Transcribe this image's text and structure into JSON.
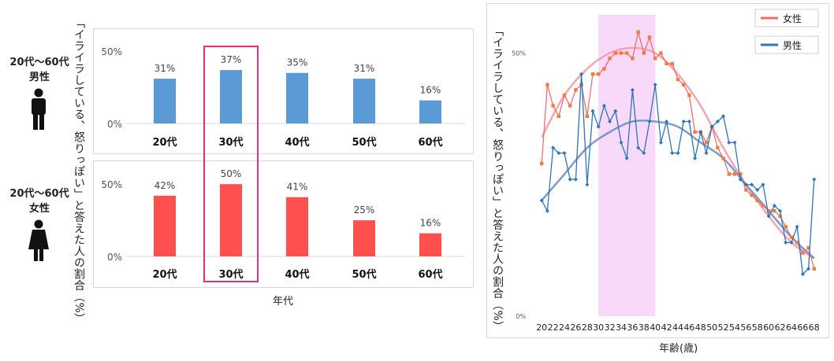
{
  "left": {
    "y_title": "「イライラしている、怒りっぽい」と答えた人の割合（%）",
    "x_title": "年代",
    "groups": [
      {
        "range": "20代〜60代",
        "gender": "男性",
        "icon": "male-person-icon"
      },
      {
        "range": "20代〜60代",
        "gender": "女性",
        "icon": "female-person-icon"
      }
    ]
  },
  "right": {
    "y_title": "「イライラしている、怒りっぽい」と答えた人の割合（%）",
    "x_title": "年齢(歳)"
  },
  "colors": {
    "male_bar": "#5b9bd5",
    "female_bar": "#ff4f4f",
    "highlight_box": "#e0307a",
    "male_line": "#2e75b6",
    "female_line": "#f26d6d",
    "male_trend": "#6f8fc8",
    "female_trend": "#f59aa8",
    "band": "#f9d9f9"
  },
  "chart_data": [
    {
      "type": "bar",
      "categories": [
        "20代",
        "30代",
        "40代",
        "50代",
        "60代"
      ],
      "values": [
        31,
        37,
        35,
        31,
        16
      ],
      "value_labels": [
        "31%",
        "37%",
        "35%",
        "31%",
        "16%"
      ],
      "y_ticks": [
        "0%",
        "50%"
      ],
      "ylim": [
        0,
        55
      ],
      "group": "男性",
      "highlight_category": "30代"
    },
    {
      "type": "bar",
      "categories": [
        "20代",
        "30代",
        "40代",
        "50代",
        "60代"
      ],
      "values": [
        42,
        50,
        41,
        25,
        16
      ],
      "value_labels": [
        "42%",
        "50%",
        "41%",
        "25%",
        "16%"
      ],
      "y_ticks": [
        "0%",
        "50%"
      ],
      "ylim": [
        0,
        55
      ],
      "group": "女性",
      "highlight_category": "30代"
    },
    {
      "type": "line",
      "x_ticks": [
        20,
        22,
        24,
        26,
        28,
        30,
        32,
        34,
        36,
        38,
        40,
        42,
        44,
        46,
        48,
        50,
        52,
        54,
        56,
        58,
        60,
        62,
        64,
        66,
        68
      ],
      "y_ticks": [
        "0%",
        "50%"
      ],
      "xlim": [
        19,
        69
      ],
      "ylim": [
        0,
        58
      ],
      "shaded_x_range": [
        30,
        40
      ],
      "legend_position": "top-right",
      "series": [
        {
          "name": "女性",
          "x": [
            20,
            21,
            22,
            23,
            24,
            25,
            26,
            27,
            28,
            29,
            30,
            31,
            32,
            33,
            34,
            35,
            36,
            37,
            38,
            39,
            40,
            41,
            42,
            43,
            44,
            45,
            46,
            47,
            48,
            49,
            50,
            51,
            52,
            53,
            54,
            55,
            56,
            57,
            58,
            59,
            60,
            61,
            62,
            63,
            64,
            65,
            66,
            67,
            68
          ],
          "values": [
            29,
            44,
            40,
            38,
            42,
            40,
            43,
            44,
            38,
            46,
            46,
            47,
            49,
            50,
            50,
            50,
            49,
            54,
            50,
            53,
            49,
            50,
            48,
            48,
            45,
            44,
            42,
            35,
            35,
            33,
            36,
            32,
            30,
            27,
            27,
            27,
            24,
            23,
            22,
            21,
            20,
            20,
            19,
            17,
            15,
            14,
            12,
            13,
            9
          ]
        },
        {
          "name": "男性",
          "x": [
            20,
            21,
            22,
            23,
            24,
            25,
            26,
            27,
            28,
            29,
            30,
            31,
            32,
            33,
            34,
            35,
            36,
            37,
            38,
            39,
            40,
            41,
            42,
            43,
            44,
            45,
            46,
            47,
            48,
            49,
            50,
            51,
            52,
            53,
            54,
            55,
            56,
            57,
            58,
            59,
            60,
            61,
            62,
            63,
            64,
            65,
            66,
            67,
            68
          ],
          "values": [
            22,
            20,
            32,
            31,
            31,
            26,
            26,
            46,
            25,
            39,
            36,
            40,
            37,
            39,
            33,
            30,
            43,
            32,
            31,
            37,
            44,
            33,
            37,
            31,
            31,
            37,
            37,
            30,
            35,
            31,
            36,
            37,
            38,
            33,
            33,
            26,
            25,
            25,
            24,
            25,
            19,
            21,
            20,
            14,
            14,
            17,
            8,
            9,
            26
          ]
        },
        {
          "name": "女性_trend",
          "x": [
            20,
            24,
            28,
            32,
            36,
            40,
            44,
            48,
            52,
            56,
            60,
            64,
            68
          ],
          "values": [
            34,
            42,
            47,
            50,
            51,
            50,
            46,
            40,
            32,
            25,
            19,
            14,
            11
          ]
        },
        {
          "name": "男性_trend",
          "x": [
            20,
            24,
            28,
            32,
            36,
            40,
            44,
            48,
            52,
            56,
            60,
            64,
            68
          ],
          "values": [
            22,
            27,
            32,
            35,
            37,
            37,
            36,
            33,
            30,
            25,
            20,
            15,
            11
          ]
        }
      ]
    }
  ]
}
